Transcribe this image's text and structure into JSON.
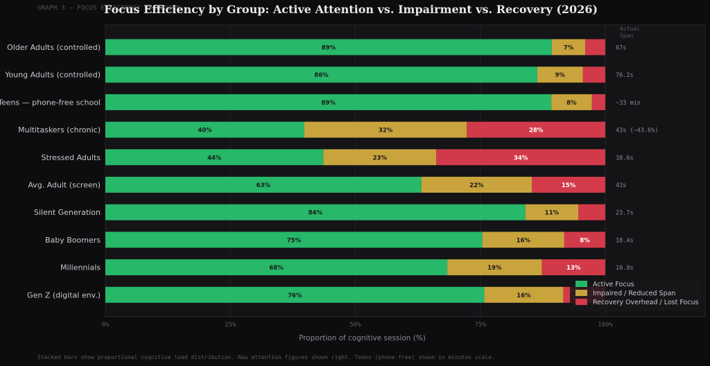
{
  "caption": "GRAPH 3 — FOCUS EFFICIENCY BREAKDOWN",
  "footnote": "Stacked bars show proportional cognitive load distribution. Raw attention figures shown right. Teens (phone-free) shown in minutes scale.",
  "chart_data": {
    "type": "bar",
    "orientation": "horizontal",
    "stacked": true,
    "title": "Focus Efficiency by Group: Active Attention vs. Impairment vs. Recovery  (2026)",
    "xlabel": "Proportion of cognitive session (%)",
    "ylabel": "",
    "xlim": [
      0,
      100
    ],
    "xticks": [
      "0%",
      "25%",
      "50%",
      "75%",
      "100%"
    ],
    "grid": true,
    "legend_position": "bottom-right",
    "right_header": "Actual\nSpan",
    "categories": [
      "Older Adults (controlled)",
      "Young Adults (controlled)",
      "Teens — phone-free school",
      "Multitaskers (chronic)",
      "Stressed Adults",
      "Avg. Adult (screen)",
      "Silent Generation",
      "Baby Boomers",
      "Millennials",
      "Gen Z (digital env.)"
    ],
    "series": [
      {
        "name": "Active Focus",
        "color": "#27b86a",
        "values": [
          89.3,
          86.4,
          89.2,
          39.8,
          43.6,
          63.2,
          84.0,
          75.4,
          68.4,
          75.8
        ],
        "labels": [
          "89%",
          "86%",
          "89%",
          "40%",
          "44%",
          "63%",
          "84%",
          "75%",
          "68%",
          "76%"
        ]
      },
      {
        "name": "Impaired / Reduced Span",
        "color": "#c9a43d",
        "values": [
          6.7,
          9.1,
          8.1,
          32.5,
          22.6,
          22.1,
          10.6,
          16.4,
          18.9,
          15.8
        ],
        "labels": [
          "7%",
          "9%",
          "8%",
          "32%",
          "23%",
          "22%",
          "11%",
          "16%",
          "19%",
          "16%"
        ]
      },
      {
        "name": "Recovery Overhead / Lost Focus",
        "color": "#d23a4a",
        "values": [
          4.0,
          4.5,
          2.7,
          27.7,
          33.8,
          14.7,
          5.4,
          8.2,
          12.7,
          8.4
        ],
        "labels": [
          "",
          "",
          "",
          "28%",
          "34%",
          "15%",
          "",
          "8%",
          "13%",
          ""
        ]
      }
    ],
    "right_values": [
      "67s",
      "76.2s",
      "~33 min",
      "43s (−43.6%)",
      "38.6s",
      "43s",
      "23.7s",
      "18.4s",
      "10.8s",
      ""
    ]
  }
}
